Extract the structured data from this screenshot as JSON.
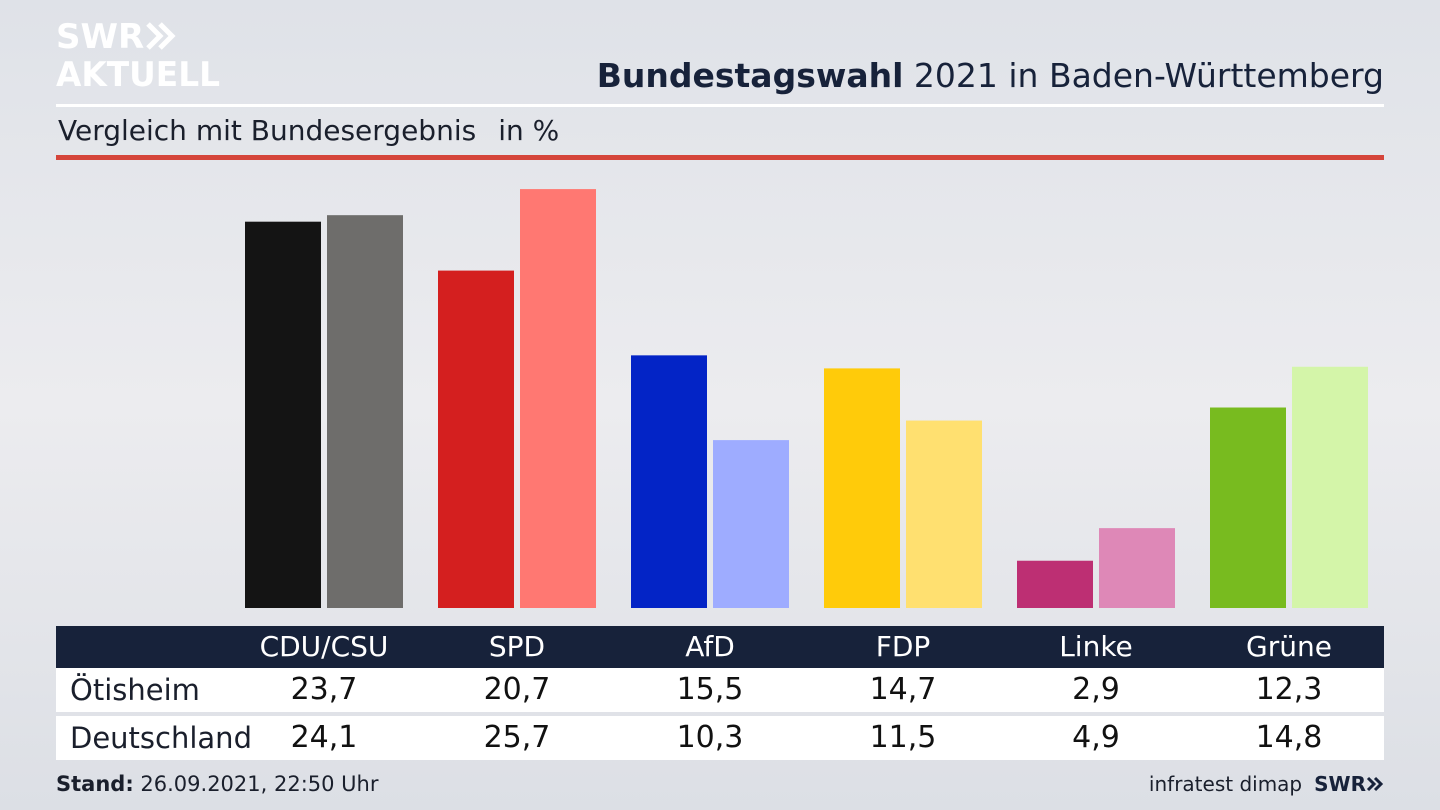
{
  "logo": {
    "line1": "SWR",
    "line2": "AKTUELL"
  },
  "header": {
    "title_bold": "Bundestagswahl",
    "title_rest": " 2021 in Baden-Württemberg",
    "subtitle": "Vergleich mit Bundesergebnis",
    "unit": "in %"
  },
  "chart_data": {
    "type": "bar",
    "categories": [
      "CDU/CSU",
      "SPD",
      "AfD",
      "FDP",
      "Linke",
      "Grüne"
    ],
    "series": [
      {
        "name": "Ötisheim",
        "values": [
          23.7,
          20.7,
          15.5,
          14.7,
          2.9,
          12.3
        ]
      },
      {
        "name": "Deutschland",
        "values": [
          24.1,
          25.7,
          10.3,
          11.5,
          4.9,
          14.8
        ]
      }
    ],
    "colors": {
      "primary": [
        "#141414",
        "#d41f1f",
        "#0324c6",
        "#ffcb0a",
        "#bd2f73",
        "#78bb1f"
      ],
      "secondary": [
        "#6e6d6b",
        "#ff7872",
        "#9eacff",
        "#ffe070",
        "#de88b7",
        "#d4f5a9"
      ]
    },
    "ylim": [
      0,
      26
    ],
    "grid": false,
    "legend": "none"
  },
  "table": {
    "headers": [
      "CDU/CSU",
      "SPD",
      "AfD",
      "FDP",
      "Linke",
      "Grüne"
    ],
    "rows": [
      {
        "label": "Ötisheim",
        "values": [
          "23,7",
          "20,7",
          "15,5",
          "14,7",
          "2,9",
          "12,3"
        ]
      },
      {
        "label": "Deutschland",
        "values": [
          "24,1",
          "25,7",
          "10,3",
          "11,5",
          "4,9",
          "14,8"
        ]
      }
    ]
  },
  "footer": {
    "stand_label": "Stand:",
    "stand_value": " 26.09.2021, 22:50 Uhr",
    "source": "infratest dimap",
    "brand": "SWR"
  }
}
